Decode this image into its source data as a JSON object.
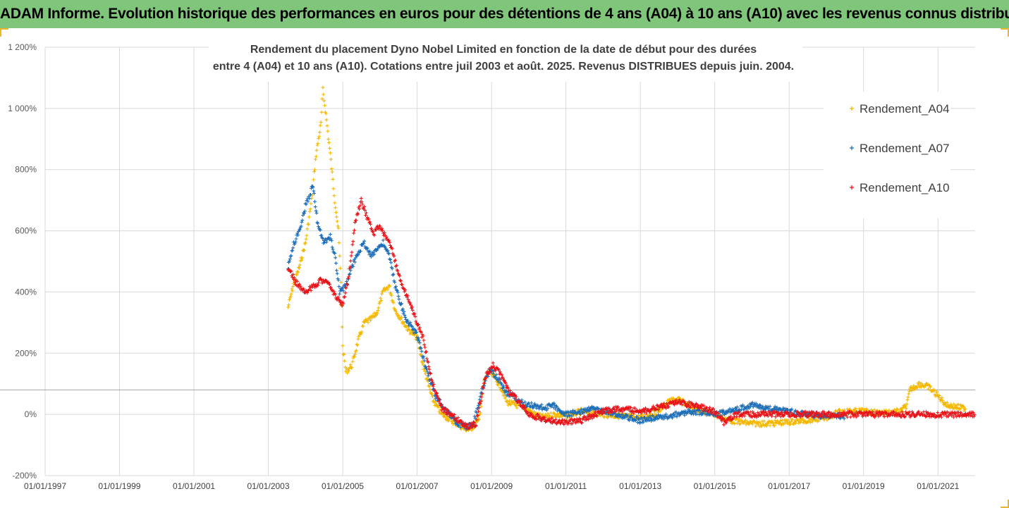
{
  "banner": {
    "title": "ADAM Informe. Evolution historique des performances en euros pour des détentions de 4 ans (A04) à 10 ans (A10) avec les revenus connus distribués"
  },
  "colors": {
    "banner_bg": "#7fc57a",
    "a04": "#f5b800",
    "a07": "#1f6fb8",
    "a10": "#e8141a",
    "grid": "#d9d9d9"
  },
  "chart_data": {
    "type": "scatter",
    "title_lines": [
      "Rendement du placement Dyno Nobel Limited en fonction de la date de début pour des durées",
      "entre 4 (A04) et 10 ans (A10). Cotations entre juil 2003 et août. 2025. Revenus DISTRIBUES depuis juin. 2004."
    ],
    "xlabel": "",
    "ylabel": "",
    "x_ticks": [
      "01/01/1997",
      "01/01/1999",
      "01/01/2001",
      "01/01/2003",
      "01/01/2005",
      "01/01/2007",
      "01/01/2009",
      "01/01/2011",
      "01/01/2013",
      "01/01/2015",
      "01/01/2017",
      "01/01/2019",
      "01/01/2021"
    ],
    "y_ticks": [
      "1 200%",
      "1 000%",
      "800%",
      "600%",
      "400%",
      "200%",
      "0%",
      "-200%"
    ],
    "xlim": [
      "1997-01-01",
      "2022-01-01"
    ],
    "ylim": [
      -200,
      1200
    ],
    "reference_line_y": 80,
    "grid": true,
    "legend": "right",
    "legend_entries": [
      "Rendement_A04",
      "Rendement_A07",
      "Rendement_A10"
    ],
    "series": [
      {
        "name": "Rendement_A04",
        "color": "#f5b800",
        "end": "2021-10-01",
        "points": [
          [
            "2003-07-15",
            350
          ],
          [
            "2003-09-01",
            420
          ],
          [
            "2003-11-01",
            480
          ],
          [
            "2004-01-01",
            560
          ],
          [
            "2004-03-01",
            700
          ],
          [
            "2004-04-15",
            850
          ],
          [
            "2004-06-01",
            950
          ],
          [
            "2004-06-20",
            1060
          ],
          [
            "2004-07-20",
            980
          ],
          [
            "2004-09-01",
            850
          ],
          [
            "2004-10-15",
            700
          ],
          [
            "2004-11-20",
            600
          ],
          [
            "2004-12-15",
            430
          ],
          [
            "2005-01-01",
            220
          ],
          [
            "2005-02-01",
            140
          ],
          [
            "2005-04-01",
            160
          ],
          [
            "2005-06-01",
            240
          ],
          [
            "2005-08-01",
            300
          ],
          [
            "2005-10-01",
            310
          ],
          [
            "2005-12-01",
            330
          ],
          [
            "2006-02-01",
            400
          ],
          [
            "2006-04-01",
            420
          ],
          [
            "2006-06-01",
            340
          ],
          [
            "2006-08-01",
            310
          ],
          [
            "2006-10-01",
            280
          ],
          [
            "2007-01-01",
            250
          ],
          [
            "2007-03-01",
            160
          ],
          [
            "2007-06-01",
            50
          ],
          [
            "2007-09-01",
            0
          ],
          [
            "2008-01-01",
            -25
          ],
          [
            "2008-04-01",
            -45
          ],
          [
            "2008-06-01",
            -50
          ],
          [
            "2008-09-01",
            -20
          ],
          [
            "2008-10-15",
            100
          ],
          [
            "2008-12-01",
            140
          ],
          [
            "2009-02-01",
            120
          ],
          [
            "2009-04-01",
            90
          ],
          [
            "2009-06-01",
            40
          ],
          [
            "2009-09-01",
            30
          ],
          [
            "2009-12-01",
            20
          ],
          [
            "2010-03-01",
            0
          ],
          [
            "2010-06-01",
            -10
          ],
          [
            "2010-09-01",
            0
          ],
          [
            "2010-12-01",
            -5
          ],
          [
            "2011-03-01",
            0
          ],
          [
            "2011-06-01",
            10
          ],
          [
            "2011-09-01",
            5
          ],
          [
            "2012-01-01",
            0
          ],
          [
            "2012-06-01",
            -5
          ],
          [
            "2013-01-01",
            -10
          ],
          [
            "2013-06-01",
            5
          ],
          [
            "2013-10-01",
            40
          ],
          [
            "2014-01-01",
            50
          ],
          [
            "2014-06-01",
            20
          ],
          [
            "2015-01-01",
            0
          ],
          [
            "2015-06-01",
            -20
          ],
          [
            "2016-01-01",
            -30
          ],
          [
            "2016-06-01",
            -30
          ],
          [
            "2017-01-01",
            -25
          ],
          [
            "2017-06-01",
            -20
          ],
          [
            "2018-01-01",
            -10
          ],
          [
            "2018-06-01",
            10
          ],
          [
            "2019-01-01",
            10
          ],
          [
            "2019-06-01",
            5
          ],
          [
            "2020-01-01",
            10
          ],
          [
            "2020-03-01",
            30
          ],
          [
            "2020-04-01",
            80
          ],
          [
            "2020-07-01",
            100
          ],
          [
            "2020-10-01",
            90
          ],
          [
            "2021-01-01",
            60
          ],
          [
            "2021-04-01",
            30
          ],
          [
            "2021-07-01",
            25
          ],
          [
            "2021-09-15",
            20
          ]
        ]
      },
      {
        "name": "Rendement_A07",
        "color": "#1f6fb8",
        "end": "2018-07-01",
        "points": [
          [
            "2003-07-15",
            480
          ],
          [
            "2003-09-01",
            550
          ],
          [
            "2003-11-01",
            600
          ],
          [
            "2004-01-01",
            680
          ],
          [
            "2004-02-15",
            720
          ],
          [
            "2004-03-15",
            750
          ],
          [
            "2004-05-01",
            620
          ],
          [
            "2004-07-01",
            560
          ],
          [
            "2004-09-01",
            580
          ],
          [
            "2004-10-15",
            520
          ],
          [
            "2004-12-01",
            400
          ],
          [
            "2005-02-01",
            420
          ],
          [
            "2005-04-01",
            480
          ],
          [
            "2005-06-01",
            530
          ],
          [
            "2005-08-01",
            560
          ],
          [
            "2005-10-01",
            520
          ],
          [
            "2005-12-01",
            540
          ],
          [
            "2006-02-01",
            560
          ],
          [
            "2006-04-01",
            520
          ],
          [
            "2006-06-01",
            420
          ],
          [
            "2006-09-01",
            320
          ],
          [
            "2007-01-01",
            260
          ],
          [
            "2007-04-01",
            150
          ],
          [
            "2007-07-01",
            60
          ],
          [
            "2007-10-01",
            20
          ],
          [
            "2008-01-01",
            -20
          ],
          [
            "2008-04-01",
            -40
          ],
          [
            "2008-07-01",
            -35
          ],
          [
            "2008-10-01",
            80
          ],
          [
            "2008-12-15",
            150
          ],
          [
            "2009-03-01",
            120
          ],
          [
            "2009-06-01",
            70
          ],
          [
            "2009-09-01",
            50
          ],
          [
            "2009-12-01",
            30
          ],
          [
            "2010-03-01",
            30
          ],
          [
            "2010-06-01",
            20
          ],
          [
            "2010-09-01",
            30
          ],
          [
            "2011-01-01",
            0
          ],
          [
            "2011-06-01",
            10
          ],
          [
            "2011-09-01",
            20
          ],
          [
            "2012-01-01",
            10
          ],
          [
            "2012-06-01",
            0
          ],
          [
            "2013-01-01",
            -20
          ],
          [
            "2013-06-01",
            -10
          ],
          [
            "2014-01-01",
            0
          ],
          [
            "2014-06-01",
            10
          ],
          [
            "2015-01-01",
            0
          ],
          [
            "2015-06-01",
            10
          ],
          [
            "2016-01-01",
            30
          ],
          [
            "2016-06-01",
            20
          ],
          [
            "2017-01-01",
            10
          ],
          [
            "2017-06-01",
            0
          ],
          [
            "2018-01-01",
            -5
          ],
          [
            "2018-06-01",
            -5
          ]
        ]
      },
      {
        "name": "Rendement_A10",
        "color": "#e8141a",
        "end": "2022-01-01",
        "points": [
          [
            "2003-07-15",
            480
          ],
          [
            "2003-10-01",
            430
          ],
          [
            "2004-01-01",
            400
          ],
          [
            "2004-04-01",
            420
          ],
          [
            "2004-06-01",
            440
          ],
          [
            "2004-09-01",
            420
          ],
          [
            "2004-11-01",
            380
          ],
          [
            "2005-01-01",
            360
          ],
          [
            "2005-03-01",
            450
          ],
          [
            "2005-05-01",
            620
          ],
          [
            "2005-07-01",
            700
          ],
          [
            "2005-09-01",
            640
          ],
          [
            "2005-11-01",
            590
          ],
          [
            "2006-01-01",
            620
          ],
          [
            "2006-03-01",
            580
          ],
          [
            "2006-05-01",
            540
          ],
          [
            "2006-07-01",
            460
          ],
          [
            "2006-10-01",
            380
          ],
          [
            "2007-01-01",
            300
          ],
          [
            "2007-03-01",
            250
          ],
          [
            "2007-06-01",
            100
          ],
          [
            "2007-09-01",
            20
          ],
          [
            "2008-01-01",
            -10
          ],
          [
            "2008-05-01",
            -40
          ],
          [
            "2008-08-01",
            -30
          ],
          [
            "2008-11-01",
            120
          ],
          [
            "2009-01-15",
            160
          ],
          [
            "2009-04-01",
            130
          ],
          [
            "2009-07-01",
            70
          ],
          [
            "2009-10-01",
            40
          ],
          [
            "2010-01-01",
            0
          ],
          [
            "2010-06-01",
            -15
          ],
          [
            "2010-12-01",
            -25
          ],
          [
            "2011-06-01",
            -20
          ],
          [
            "2012-01-01",
            10
          ],
          [
            "2012-06-01",
            20
          ],
          [
            "2013-01-01",
            10
          ],
          [
            "2013-06-01",
            20
          ],
          [
            "2014-01-01",
            40
          ],
          [
            "2014-06-01",
            30
          ],
          [
            "2015-01-01",
            10
          ],
          [
            "2015-04-01",
            -25
          ],
          [
            "2015-08-01",
            0
          ],
          [
            "2016-06-01",
            0
          ],
          [
            "2018-01-01",
            0
          ],
          [
            "2020-01-01",
            0
          ],
          [
            "2022-01-01",
            0
          ]
        ]
      }
    ]
  }
}
